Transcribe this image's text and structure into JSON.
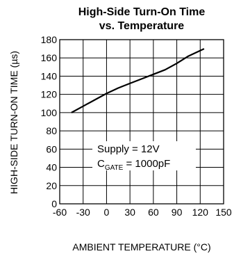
{
  "chart_data": {
    "type": "line",
    "title": [
      "High-Side Turn-On Time",
      "vs. Temperature"
    ],
    "xlabel": "AMBIENT TEMPERATURE (°C)",
    "ylabel": "HIGH-SIDE TURN-ON TIME (µs)",
    "xlim": [
      -60,
      150
    ],
    "ylim": [
      0,
      180
    ],
    "x_ticks": [
      -60,
      -30,
      0,
      30,
      60,
      90,
      120,
      150
    ],
    "y_ticks": [
      0,
      20,
      40,
      60,
      80,
      100,
      120,
      140,
      160,
      180
    ],
    "grid": true,
    "series": [
      {
        "color": "#000000",
        "x": [
          -45,
          -30,
          -15,
          0,
          15,
          30,
          45,
          60,
          75,
          90,
          105,
          125
        ],
        "y": [
          100,
          107,
          114,
          121,
          127,
          132,
          137,
          142,
          147,
          154,
          162,
          170
        ]
      }
    ],
    "annotation": {
      "line1": "Supply = 12V",
      "line2_main": "C",
      "line2_sub": "GATE",
      "line2_rest": " = 1000pF"
    }
  }
}
